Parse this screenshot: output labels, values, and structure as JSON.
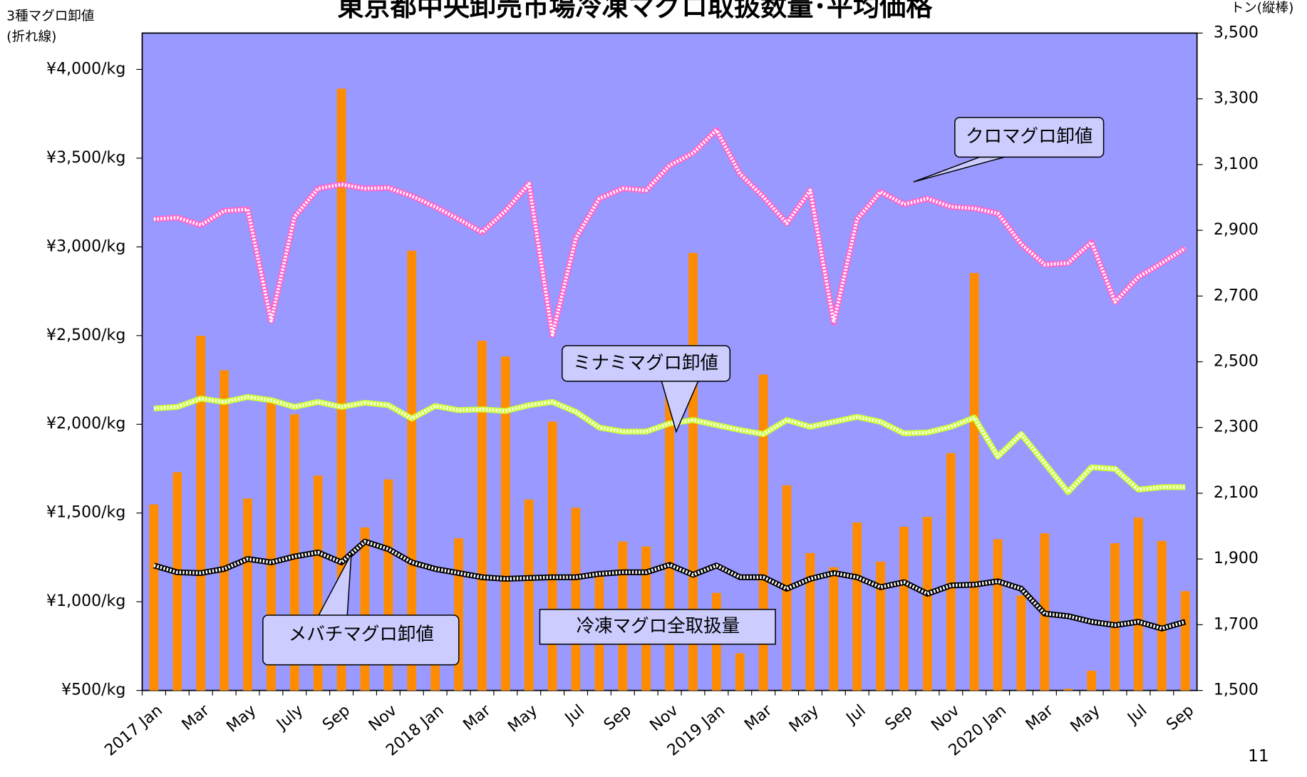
{
  "chart_data": {
    "type": "bar",
    "title": "東京都中央卸売市場冷凍マグロ取扱数量･平均価格",
    "y_axis_label": [
      "3種マグロ卸値",
      "(折れ線)"
    ],
    "y2_axis_label": "トン(縦棒)",
    "page_number": "11",
    "categories": [
      "2017 Jan",
      null,
      "Mar",
      null,
      "May",
      null,
      "July",
      null,
      "Sep",
      null,
      "Nov",
      null,
      "2018 Jan",
      null,
      "Mar",
      null,
      "May",
      null,
      "Jul",
      null,
      "Sep",
      null,
      "Nov",
      null,
      "2019 Jan",
      null,
      "Mar",
      null,
      "May",
      null,
      "Jul",
      null,
      "Sep",
      null,
      "Nov",
      null,
      "2020 Jan",
      null,
      "Mar",
      null,
      "May",
      null,
      "Jul",
      null,
      "Sep"
    ],
    "ylim": [
      500,
      4205
    ],
    "yticks": [
      {
        "value": 500,
        "label": "¥500/kg"
      },
      {
        "value": 1000,
        "label": "¥1,000/kg"
      },
      {
        "value": 1500,
        "label": "¥1,500/kg"
      },
      {
        "value": 2000,
        "label": "¥2,000/kg"
      },
      {
        "value": 2500,
        "label": "¥2,500/kg"
      },
      {
        "value": 3000,
        "label": "¥3,000/kg"
      },
      {
        "value": 3500,
        "label": "¥3,500/kg"
      },
      {
        "value": 4000,
        "label": "¥4,000/kg"
      }
    ],
    "y2lim": [
      1500,
      3500
    ],
    "y2ticks": [
      {
        "value": 1500,
        "label": "1,500"
      },
      {
        "value": 1700,
        "label": "1,700"
      },
      {
        "value": 1900,
        "label": "1,900"
      },
      {
        "value": 2100,
        "label": "2,100"
      },
      {
        "value": 2300,
        "label": "2,300"
      },
      {
        "value": 2500,
        "label": "2,500"
      },
      {
        "value": 2700,
        "label": "2,700"
      },
      {
        "value": 2900,
        "label": "2,900"
      },
      {
        "value": 3100,
        "label": "3,100"
      },
      {
        "value": 3300,
        "label": "3,300"
      },
      {
        "value": 3500,
        "label": "3,500"
      }
    ],
    "series": [
      {
        "name": "クロマグロ卸値",
        "type": "line",
        "axis": "y",
        "color": "#ff66cc",
        "values": [
          3156,
          3165,
          3123,
          3203,
          3212,
          2583,
          3170,
          3329,
          3352,
          3329,
          3333,
          3287,
          3226,
          3156,
          3082,
          3203,
          3356,
          2504,
          3049,
          3272,
          3329,
          3319,
          3459,
          3529,
          3659,
          3412,
          3282,
          3133,
          3319,
          2574,
          3156,
          3310,
          3240,
          3272,
          3226,
          3217,
          3189,
          3016,
          2900,
          2909,
          3026,
          2690,
          2830,
          2909,
          2993
        ]
      },
      {
        "name": "ミナミマグロ卸値",
        "type": "line",
        "axis": "y",
        "color": "#ccff33",
        "values": [
          2089,
          2098,
          2145,
          2126,
          2154,
          2136,
          2098,
          2126,
          2098,
          2122,
          2108,
          2033,
          2103,
          2080,
          2084,
          2075,
          2108,
          2126,
          2070,
          1982,
          1959,
          1959,
          2005,
          2024,
          1996,
          1968,
          1945,
          2024,
          1986,
          2014,
          2042,
          2014,
          1949,
          1954,
          1986,
          2038,
          1819,
          1945,
          1781,
          1618,
          1758,
          1749,
          1632,
          1646,
          1646
        ]
      },
      {
        "name": "メバチマグロ卸値",
        "type": "line",
        "axis": "y",
        "color": "#000000",
        "values": [
          1204,
          1166,
          1162,
          1185,
          1241,
          1222,
          1255,
          1278,
          1222,
          1339,
          1297,
          1222,
          1185,
          1162,
          1138,
          1129,
          1134,
          1138,
          1138,
          1157,
          1166,
          1166,
          1208,
          1152,
          1204,
          1138,
          1138,
          1073,
          1129,
          1162,
          1138,
          1082,
          1110,
          1045,
          1092,
          1096,
          1115,
          1073,
          933,
          919,
          887,
          868,
          887,
          849,
          887
        ]
      },
      {
        "name": "冷凍マグロ全取扱量",
        "type": "bar",
        "axis": "y2",
        "color": "#ff8c00",
        "values": [
          2066,
          2164,
          2579,
          2474,
          2084,
          2375,
          2340,
          2154,
          3331,
          1996,
          2142,
          2838,
          1660,
          1963,
          2564,
          2516,
          2081,
          2318,
          2056,
          1852,
          1953,
          1938,
          2406,
          2831,
          1797,
          1613,
          2461,
          2124,
          1918,
          1875,
          2011,
          1892,
          1998,
          2028,
          2222,
          2770,
          1960,
          1789,
          1978,
          1505,
          1560,
          1948,
          2026,
          1955,
          1802
        ]
      }
    ]
  }
}
